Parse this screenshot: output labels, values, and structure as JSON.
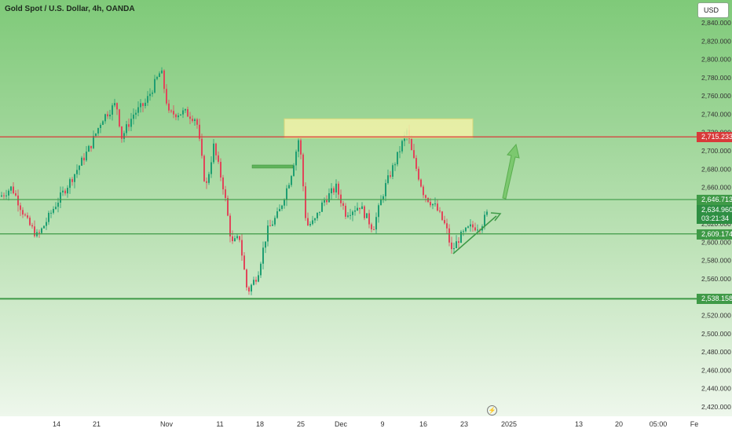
{
  "header": {
    "title": "Gold Spot / U.S. Dollar, 4h, OANDA",
    "currency_label": "USD"
  },
  "price_tags": [
    {
      "label": "2,715.233",
      "value": 2715.233,
      "color": "#d83a3a"
    },
    {
      "label": "2,646.713",
      "value": 2646.713,
      "color": "#3f9a47"
    },
    {
      "label": "2,634.960",
      "label2": "03:21:34",
      "value": 2634.96,
      "color": "#2e8f43"
    },
    {
      "label": "2,609.174",
      "value": 2609.174,
      "color": "#3f9a47"
    },
    {
      "label": "2,538.158",
      "value": 2538.158,
      "color": "#3f9a47"
    }
  ],
  "colors": {
    "up_candle": "#1f9e72",
    "down_candle": "#e0465a",
    "level_line": "#3f9a47",
    "resistance_line": "#d83a3a",
    "zone": "#f3f2a8",
    "arrow": "#7cc86f"
  },
  "icons": {
    "realtime": "lightning-icon"
  },
  "chart_data": {
    "type": "candlestick",
    "title": "Gold Spot / U.S. Dollar, 4h, OANDA",
    "ylim": [
      2410,
      2850
    ],
    "y_ticks": [
      "2,420.000",
      "2,440.000",
      "2,460.000",
      "2,480.000",
      "2,500.000",
      "2,520.000",
      "2,540.000",
      "2,560.000",
      "2,580.000",
      "2,600.000",
      "2,620.000",
      "2,640.000",
      "2,660.000",
      "2,680.000",
      "2,700.000",
      "2,720.000",
      "2,740.000",
      "2,760.000",
      "2,780.000",
      "2,800.000",
      "2,820.000",
      "2,840.000"
    ],
    "y_tick_values": [
      2420,
      2440,
      2460,
      2480,
      2500,
      2520,
      2540,
      2560,
      2580,
      2600,
      2620,
      2640,
      2660,
      2680,
      2700,
      2720,
      2740,
      2760,
      2780,
      2800,
      2820,
      2840
    ],
    "x_ticks": [
      "14",
      "21",
      "Nov",
      "11",
      "18",
      "25",
      "Dec",
      "9",
      "16",
      "23",
      "2025",
      "13",
      "20",
      "05:00",
      "Fe"
    ],
    "price_path": [
      {
        "t": 0,
        "p": 2650
      },
      {
        "t": 15,
        "p": 2660
      },
      {
        "t": 35,
        "p": 2622
      },
      {
        "t": 48,
        "p": 2606
      },
      {
        "t": 70,
        "p": 2640
      },
      {
        "t": 95,
        "p": 2675
      },
      {
        "t": 115,
        "p": 2705
      },
      {
        "t": 130,
        "p": 2735
      },
      {
        "t": 148,
        "p": 2752
      },
      {
        "t": 155,
        "p": 2715
      },
      {
        "t": 170,
        "p": 2740
      },
      {
        "t": 185,
        "p": 2752
      },
      {
        "t": 205,
        "p": 2788
      },
      {
        "t": 215,
        "p": 2740
      },
      {
        "t": 235,
        "p": 2742
      },
      {
        "t": 250,
        "p": 2735
      },
      {
        "t": 262,
        "p": 2658
      },
      {
        "t": 272,
        "p": 2705
      },
      {
        "t": 285,
        "p": 2658
      },
      {
        "t": 295,
        "p": 2598
      },
      {
        "t": 305,
        "p": 2605
      },
      {
        "t": 315,
        "p": 2545
      },
      {
        "t": 328,
        "p": 2565
      },
      {
        "t": 340,
        "p": 2612
      },
      {
        "t": 355,
        "p": 2632
      },
      {
        "t": 370,
        "p": 2672
      },
      {
        "t": 381,
        "p": 2716
      },
      {
        "t": 390,
        "p": 2618
      },
      {
        "t": 400,
        "p": 2622
      },
      {
        "t": 412,
        "p": 2645
      },
      {
        "t": 428,
        "p": 2660
      },
      {
        "t": 440,
        "p": 2632
      },
      {
        "t": 458,
        "p": 2640
      },
      {
        "t": 475,
        "p": 2615
      },
      {
        "t": 490,
        "p": 2660
      },
      {
        "t": 505,
        "p": 2692
      },
      {
        "t": 518,
        "p": 2722
      },
      {
        "t": 525,
        "p": 2695
      },
      {
        "t": 540,
        "p": 2652
      },
      {
        "t": 555,
        "p": 2638
      },
      {
        "t": 568,
        "p": 2616
      },
      {
        "t": 575,
        "p": 2590
      },
      {
        "t": 585,
        "p": 2605
      },
      {
        "t": 598,
        "p": 2616
      },
      {
        "t": 612,
        "p": 2618
      },
      {
        "t": 622,
        "p": 2634
      }
    ],
    "horizontal_levels": [
      2715.233,
      2646.713,
      2609.174,
      2538.158
    ],
    "resistance_zone": {
      "from": 2714,
      "to": 2735
    }
  }
}
